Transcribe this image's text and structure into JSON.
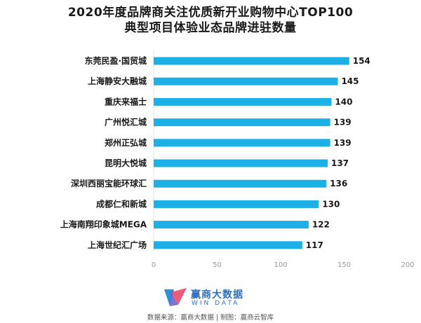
{
  "title_line1": "2020年度品牌商关注优质新开业购物中心TOP100",
  "title_line2": "典型项目体验业态品牌进驻数量",
  "chart_data": {
    "type": "bar",
    "orientation": "horizontal",
    "categories": [
      "东莞民盈·国贸城",
      "上海静安大融城",
      "重庆来福士",
      "广州悦汇城",
      "郑州正弘城",
      "昆明大悦城",
      "深圳西丽宝能环球汇",
      "成都仁和新城",
      "上海南翔印象城MEGA",
      "上海世纪汇广场"
    ],
    "values": [
      154,
      145,
      140,
      139,
      139,
      137,
      136,
      130,
      122,
      117
    ],
    "xlim": [
      0,
      200
    ],
    "ticks": [
      0,
      50,
      100,
      150,
      200
    ],
    "bar_color": "#1bb0e6",
    "grid": false,
    "data_labels": true
  },
  "logo": {
    "name_cn": "赢商大数据",
    "name_en": "WIN DATA"
  },
  "source": "数据来源：赢商大数据 | 制图：赢商云智库"
}
